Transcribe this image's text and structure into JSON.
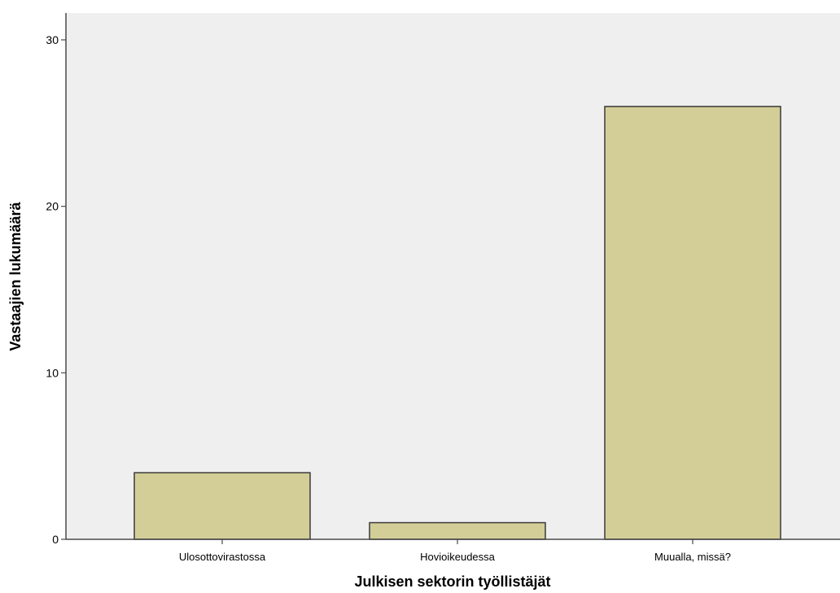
{
  "chart_data": {
    "type": "bar",
    "categories": [
      "Ulosottovirastossa",
      "Hovioikeudessa",
      "Muualla, missä?"
    ],
    "values": [
      4,
      1,
      26
    ],
    "title": "",
    "xlabel": "Julkisen sektorin työllistäjät",
    "ylabel": "Vastaajien lukumäärä",
    "ylim": [
      0,
      30
    ],
    "yticks": [
      0,
      10,
      20,
      30
    ],
    "grid": false,
    "colors": {
      "plot_background": "#efefef",
      "bar_fill": "#d3ce97",
      "bar_stroke": "#3a3a3a",
      "axis": "#4a4a4a"
    }
  }
}
